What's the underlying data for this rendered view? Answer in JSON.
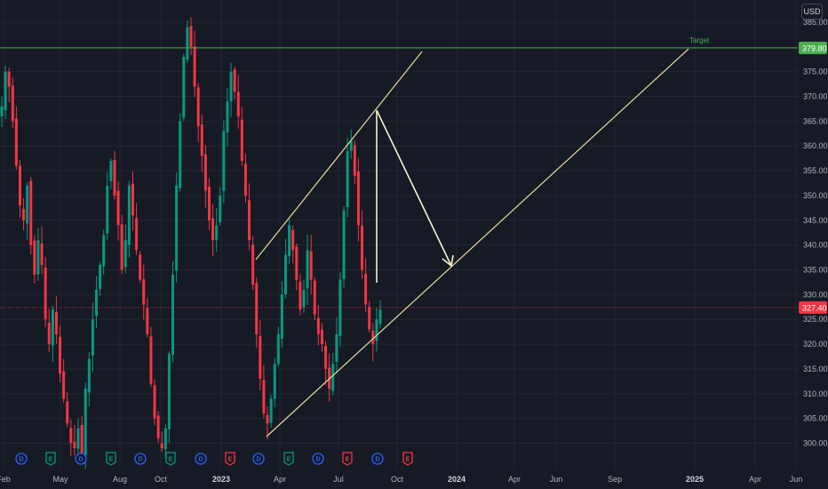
{
  "currency_label": "USD",
  "chart_data": {
    "type": "candlestick",
    "title": "",
    "ylim": [
      297,
      389
    ],
    "y_ticks": [
      300,
      305,
      310,
      315,
      320,
      325,
      330,
      335,
      340,
      345,
      350,
      355,
      360,
      365,
      370,
      375,
      385
    ],
    "y_tick_labels": [
      "300.00",
      "305.00",
      "310.00",
      "315.00",
      "320.00",
      "325.00",
      "330.00",
      "335.00",
      "340.00",
      "345.00",
      "350.00",
      "355.00",
      "360.00",
      "365.00",
      "370.00",
      "375.00",
      "385.00"
    ],
    "x_labels": [
      "Feb",
      "May",
      "Aug",
      "Oct",
      "2023",
      "Apr",
      "Jul",
      "Oct",
      "2024",
      "Apr",
      "Jun",
      "Sep",
      "2025",
      "Apr",
      "Jun"
    ],
    "year_labels": [
      "2023",
      "2024",
      "2025"
    ],
    "target_line": {
      "value": 379.8,
      "label": "Target",
      "price_tag": "379.80",
      "color": "#4caf50"
    },
    "current_price": {
      "value": 327.4,
      "price_tag": "327.40",
      "color": "#f23645"
    },
    "trend_lines": [
      {
        "name": "upper-channel",
        "from": [
          "Jan 2023",
          338.5
        ],
        "to": [
          "Jul 2023",
          379.8
        ]
      },
      {
        "name": "lower-support",
        "from": [
          "Mar 2023",
          301.5
        ],
        "to": [
          "Jan 2025",
          379.8
        ]
      },
      {
        "name": "projection-drop",
        "from": [
          "Aug 2023",
          367
        ],
        "to": [
          "Aug 2023",
          333
        ]
      },
      {
        "name": "projection-path",
        "from": [
          "Aug 2023",
          367
        ],
        "to": [
          "Nov 2023",
          336
        ]
      }
    ],
    "events": [
      {
        "type": "D",
        "kind": "dividend",
        "color": "#2962ff"
      },
      {
        "type": "E",
        "kind": "earnings",
        "color": "#089981"
      },
      {
        "type": "D",
        "kind": "dividend",
        "color": "#2962ff"
      },
      {
        "type": "E",
        "kind": "earnings",
        "color": "#089981"
      },
      {
        "type": "D",
        "kind": "dividend",
        "color": "#2962ff"
      },
      {
        "type": "E",
        "kind": "earnings",
        "color": "#089981"
      },
      {
        "type": "D",
        "kind": "dividend",
        "color": "#2962ff"
      },
      {
        "type": "E",
        "kind": "earnings",
        "color": "#f23645"
      },
      {
        "type": "D",
        "kind": "dividend",
        "color": "#2962ff"
      },
      {
        "type": "E",
        "kind": "earnings",
        "color": "#089981"
      },
      {
        "type": "D",
        "kind": "dividend",
        "color": "#2962ff"
      },
      {
        "type": "E",
        "kind": "earnings",
        "color": "#f23645"
      },
      {
        "type": "D",
        "kind": "dividend",
        "color": "#2962ff"
      },
      {
        "type": "E",
        "kind": "earnings",
        "color": "#f23645"
      }
    ],
    "closes": [
      368,
      375,
      372,
      365,
      356,
      348,
      345,
      352,
      340,
      334,
      341,
      336,
      325,
      320,
      327,
      322,
      314,
      309,
      304,
      300,
      299,
      303,
      298,
      311,
      317,
      325,
      331,
      336,
      342,
      352,
      357,
      350,
      344,
      335,
      341,
      352,
      346,
      339,
      333,
      328,
      322,
      312,
      305,
      301,
      299,
      303,
      318,
      334,
      352,
      365,
      378,
      384,
      380,
      372,
      364,
      358,
      351,
      345,
      341,
      344,
      350,
      363,
      369,
      375,
      371,
      366,
      357,
      350,
      341,
      332,
      322,
      313,
      306,
      304,
      309,
      316,
      322,
      330,
      338,
      344,
      339,
      333,
      327,
      331,
      339,
      333,
      326,
      322,
      320,
      315,
      311,
      316,
      322,
      333,
      347,
      359,
      361,
      354,
      344,
      335,
      328,
      323,
      320,
      325,
      327
    ],
    "colors": {
      "up": "#089981",
      "down": "#f23645",
      "background": "#161a25",
      "grid": "#232632",
      "trend": "#e8d9a0",
      "arrow": "#f5f2d0"
    }
  }
}
